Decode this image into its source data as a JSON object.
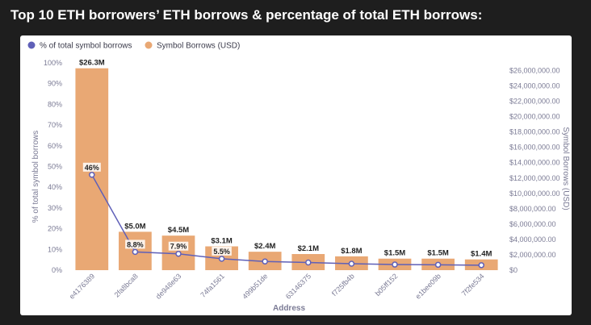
{
  "page": {
    "title": "Top 10 ETH borrowers’ ETH borrows & percentage of total ETH borrows:"
  },
  "colors": {
    "bar": "#E9A874",
    "line": "#5F60B8",
    "background": "#1e1e1e",
    "panel": "#ffffff"
  },
  "legend": {
    "position": "top-left",
    "items": [
      {
        "label": "% of total symbol borrows",
        "color": "#5F60B8",
        "shape": "circle"
      },
      {
        "label": "Symbol Borrows (USD)",
        "color": "#E9A874",
        "shape": "circle"
      }
    ]
  },
  "chart_data": {
    "type": "bar",
    "categories": [
      "e4176389",
      "2fa8bca8",
      "de948e63",
      "74fa1561",
      "499b51de",
      "63146375",
      "f725fb4b",
      "b05ff152",
      "e1bee09b",
      "7f2fe534"
    ],
    "series": [
      {
        "name": "Symbol Borrows (USD)",
        "type": "bar",
        "axis": "right",
        "values": [
          26300000,
          5000000,
          4500000,
          3100000,
          2400000,
          2100000,
          1800000,
          1500000,
          1500000,
          1400000
        ],
        "labels": [
          "$26.3M",
          "$5.0M",
          "$4.5M",
          "$3.1M",
          "$2.4M",
          "$2.1M",
          "$1.8M",
          "$1.5M",
          "$1.5M",
          "$1.4M"
        ]
      },
      {
        "name": "% of total symbol borrows",
        "type": "line",
        "axis": "left",
        "values": [
          46,
          8.8,
          7.9,
          5.5,
          4.2,
          3.7,
          3.1,
          2.7,
          2.6,
          2.4
        ],
        "labels": [
          "46%",
          "8.8%",
          "7.9%",
          "5.5%",
          "",
          "",
          "",
          "",
          "",
          ""
        ]
      }
    ],
    "xlabel": "Address",
    "ylabel_left": "% of total symbol borrows",
    "ylabel_right": "Symbol Borrows (USD)",
    "ylim_left": [
      0,
      100
    ],
    "ylim_right": [
      0,
      27000000
    ],
    "yticks_left": [
      "0%",
      "10%",
      "20%",
      "30%",
      "40%",
      "50%",
      "60%",
      "70%",
      "80%",
      "90%",
      "100%"
    ],
    "yticks_right": [
      "$0",
      "$2,000,000.00",
      "$4,000,000.00",
      "$6,000,000.00",
      "$8,000,000.00",
      "$10,000,000.00",
      "$12,000,000.00",
      "$14,000,000.00",
      "$16,000,000.00",
      "$18,000,000.00",
      "$20,000,000.00",
      "$22,000,000.00",
      "$24,000,000.00",
      "$26,000,000.00"
    ],
    "grid": false
  }
}
